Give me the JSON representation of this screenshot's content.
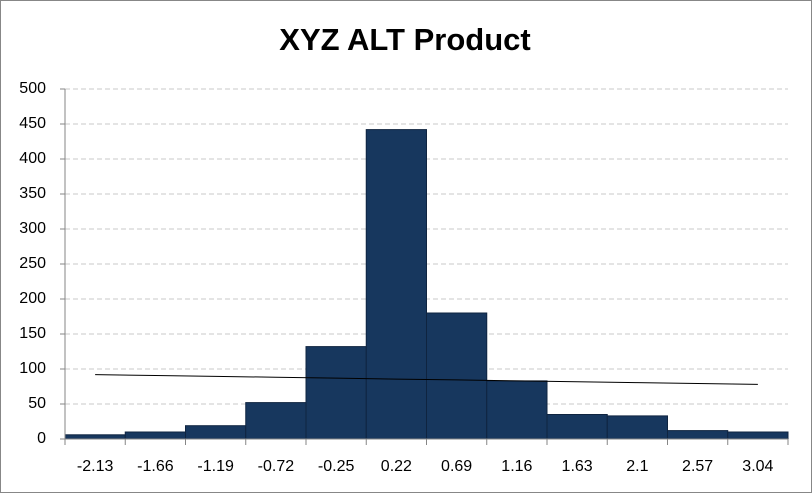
{
  "chart_data": {
    "type": "bar",
    "title": "XYZ ALT Product",
    "categories": [
      "-2.13",
      "-1.66",
      "-1.19",
      "-0.72",
      "-0.25",
      "0.22",
      "0.69",
      "1.16",
      "1.63",
      "2.1",
      "2.57",
      "3.04"
    ],
    "values": [
      6,
      10,
      19,
      52,
      132,
      442,
      180,
      83,
      35,
      33,
      12,
      10
    ],
    "color": "#17375e",
    "trendline": {
      "values": [
        92,
        90.7,
        89.5,
        88.2,
        86.9,
        85.6,
        84.4,
        83.1,
        81.8,
        80.5,
        79.3,
        78
      ],
      "color": "#000000"
    },
    "ylim": [
      0,
      500
    ],
    "yticks": [
      0,
      50,
      100,
      150,
      200,
      250,
      300,
      350,
      400,
      450,
      500
    ],
    "grid": true
  }
}
